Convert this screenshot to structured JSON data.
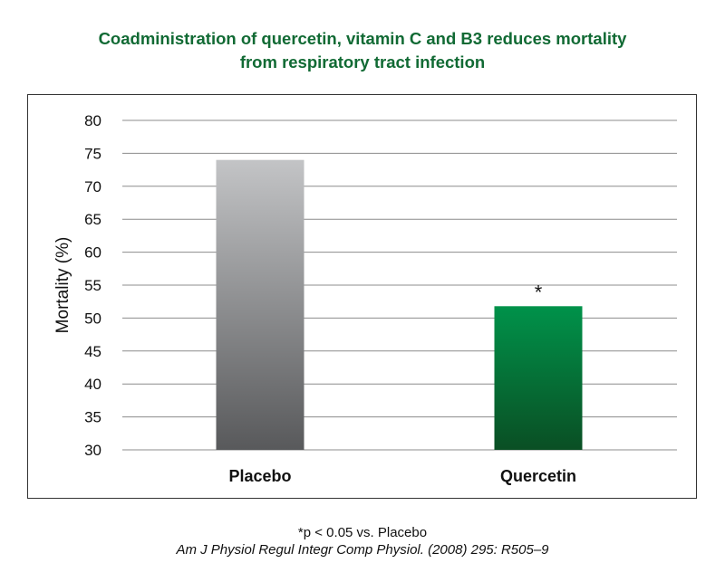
{
  "title_lines": [
    "Coadministration of quercetin, vitamin C and B3 reduces mortality",
    "from respiratory tract infection"
  ],
  "chart_data": {
    "type": "bar",
    "categories": [
      "Placebo",
      "Quercetin"
    ],
    "values": [
      74,
      51.8
    ],
    "ylabel": "Mortality (%)",
    "xlabel": "",
    "ylim": [
      30,
      80
    ],
    "yticks": [
      "30",
      "35",
      "40",
      "45",
      "50",
      "55",
      "60",
      "65",
      "70",
      "75",
      "80"
    ],
    "grid": true,
    "bar_colors": [
      {
        "top": "#c3c4c6",
        "bottom": "#58595b"
      },
      {
        "top": "#00924a",
        "bottom": "#0a4f24"
      }
    ],
    "annotations": [
      {
        "category": "Quercetin",
        "text": "*"
      }
    ]
  },
  "footnote": "*p < 0.05 vs. Placebo",
  "citation": "Am J Physiol Regul Integr Comp Physiol. (2008) 295: R505–9"
}
